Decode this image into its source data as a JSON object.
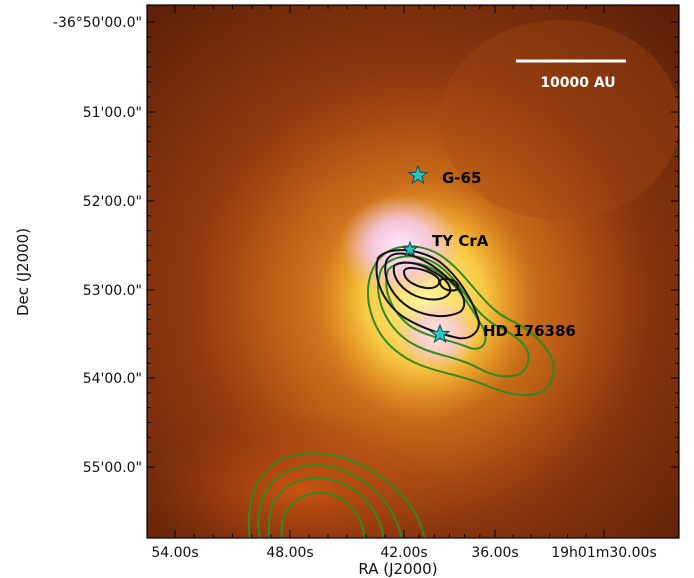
{
  "axes": {
    "xlabel": "RA (J2000)",
    "ylabel": "Dec (J2000)",
    "x_ticks": [
      "54.00s",
      "48.00s",
      "42.00s",
      "36.00s",
      "19h01m30.00s"
    ],
    "y_ticks": [
      "-36°50'00.0\"",
      "51'00.0\"",
      "52'00.0\"",
      "53'00.0\"",
      "54'00.0\"",
      "55'00.0\""
    ]
  },
  "scale_bar": {
    "label": "10000 AU"
  },
  "sources": [
    {
      "name": "G-65"
    },
    {
      "name": "TY CrA"
    },
    {
      "name": "HD 176386"
    }
  ],
  "colors": {
    "star_marker": "#2ec4c4",
    "contour_green": "#2f8a1f",
    "contour_black": "#111111",
    "scale_bar": "#ffffff"
  }
}
